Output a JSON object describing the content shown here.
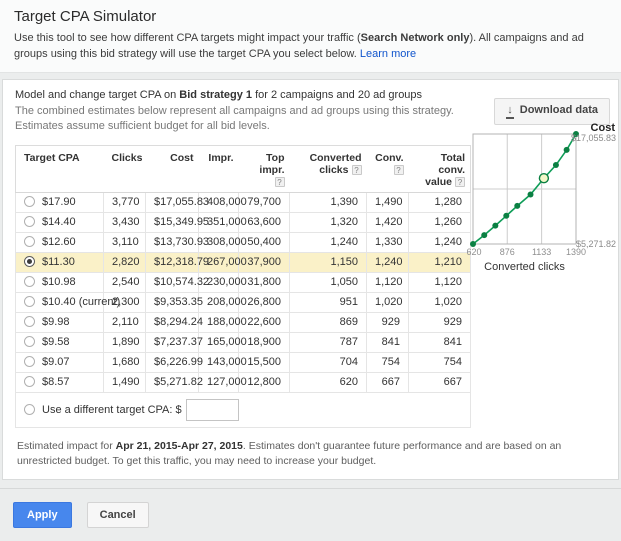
{
  "header": {
    "title": "Target CPA Simulator",
    "description_pre": "Use this tool to see how different CPA targets might impact your traffic (",
    "description_bold": "Search Network only",
    "description_post": "). All campaigns and ad groups using this bid strategy will use the target CPA you select below. ",
    "learn_more_label": "Learn more"
  },
  "model": {
    "line1_pre": "Model and change target CPA on ",
    "line1_bold": "Bid strategy 1",
    "line1_post": " for 2 campaigns and 20 ad groups",
    "line2": "The combined estimates below represent all campaigns and ad groups using this strategy. Estimates assume sufficient budget for all bid levels.",
    "download_button_label": "Download data"
  },
  "table": {
    "columns": [
      {
        "label": "Target CPA",
        "help": false
      },
      {
        "label": "Clicks",
        "help": false
      },
      {
        "label": "Cost",
        "help": false
      },
      {
        "label": "Impr.",
        "help": false
      },
      {
        "label": "Top impr.",
        "help": true
      },
      {
        "label": "Converted clicks",
        "help": true
      },
      {
        "label": "Conv.",
        "help": true
      },
      {
        "label": "Total conv. value",
        "help": true
      }
    ],
    "rows": [
      {
        "target": "$17.90",
        "selected": false,
        "cells": [
          "3,770",
          "$17,055.83",
          "408,000",
          "79,700",
          "1,390",
          "1,490",
          "1,280"
        ]
      },
      {
        "target": "$14.40",
        "selected": false,
        "cells": [
          "3,430",
          "$15,349.95",
          "351,000",
          "63,600",
          "1,320",
          "1,420",
          "1,260"
        ]
      },
      {
        "target": "$12.60",
        "selected": false,
        "cells": [
          "3,110",
          "$13,730.93",
          "308,000",
          "50,400",
          "1,240",
          "1,330",
          "1,240"
        ]
      },
      {
        "target": "$11.30",
        "selected": true,
        "cells": [
          "2,820",
          "$12,318.79",
          "267,000",
          "37,900",
          "1,150",
          "1,240",
          "1,210"
        ]
      },
      {
        "target": "$10.98",
        "selected": false,
        "cells": [
          "2,540",
          "$10,574.32",
          "230,000",
          "31,800",
          "1,050",
          "1,120",
          "1,120"
        ]
      },
      {
        "target": "$10.40 (current)",
        "selected": false,
        "cells": [
          "2,300",
          "$9,353.35",
          "208,000",
          "26,800",
          "951",
          "1,020",
          "1,020"
        ]
      },
      {
        "target": "$9.98",
        "selected": false,
        "cells": [
          "2,110",
          "$8,294.24",
          "188,000",
          "22,600",
          "869",
          "929",
          "929"
        ]
      },
      {
        "target": "$9.58",
        "selected": false,
        "cells": [
          "1,890",
          "$7,237.37",
          "165,000",
          "18,900",
          "787",
          "841",
          "841"
        ]
      },
      {
        "target": "$9.07",
        "selected": false,
        "cells": [
          "1,680",
          "$6,226.99",
          "143,000",
          "15,500",
          "704",
          "754",
          "754"
        ]
      },
      {
        "target": "$8.57",
        "selected": false,
        "cells": [
          "1,490",
          "$5,271.82",
          "127,000",
          "12,800",
          "620",
          "667",
          "667"
        ]
      }
    ],
    "custom_row": {
      "label": "Use a different target CPA: $",
      "input_value": ""
    }
  },
  "chart_data": {
    "type": "line",
    "title": "Cost",
    "xlabel": "Converted clicks",
    "x": [
      620,
      704,
      787,
      869,
      951,
      1050,
      1150,
      1240,
      1320,
      1390
    ],
    "y": [
      5271.82,
      6226.99,
      7237.37,
      8294.24,
      9353.35,
      10574.32,
      12318.79,
      13730.93,
      15349.95,
      17055.83
    ],
    "selected_index": 6,
    "x_ticks": [
      "620",
      "876",
      "1133",
      "1390"
    ],
    "x_tick_values": [
      620,
      876,
      1133,
      1390
    ],
    "x_gridlines": [
      876,
      1133
    ],
    "xlim": [
      620,
      1390
    ],
    "ylim": [
      5271.82,
      17055.83
    ],
    "y_max_label": "$17,055.83",
    "y_min_label": "$5,271.82",
    "grid": "partial",
    "legend_position": "none",
    "colors": {
      "line": "#0f9d58",
      "dot": "#0b8043",
      "selected_fill": "#f3f7c9",
      "grid": "#cccccc",
      "border": "#b3b3b3",
      "tick_text": "#8f8f8f",
      "value_text": "#8a8a8a",
      "title_text": "#222222",
      "xlabel_text": "#333333"
    }
  },
  "note": {
    "pre": "Estimated impact for ",
    "bold": "Apr 21, 2015-Apr 27, 2015",
    "post": ". Estimates don't guarantee future performance and are based on an unrestricted budget. To get this traffic, you may need to increase your budget."
  },
  "actions": {
    "apply_label": "Apply",
    "cancel_label": "Cancel"
  },
  "icons": {
    "help_glyph": "?",
    "download_glyph": "↓"
  },
  "colors": {
    "accent_blue": "#4787ed",
    "selected_row_bg": "#faf1c8",
    "link_blue": "#1155cc",
    "chart_green": "#0f9d58"
  }
}
